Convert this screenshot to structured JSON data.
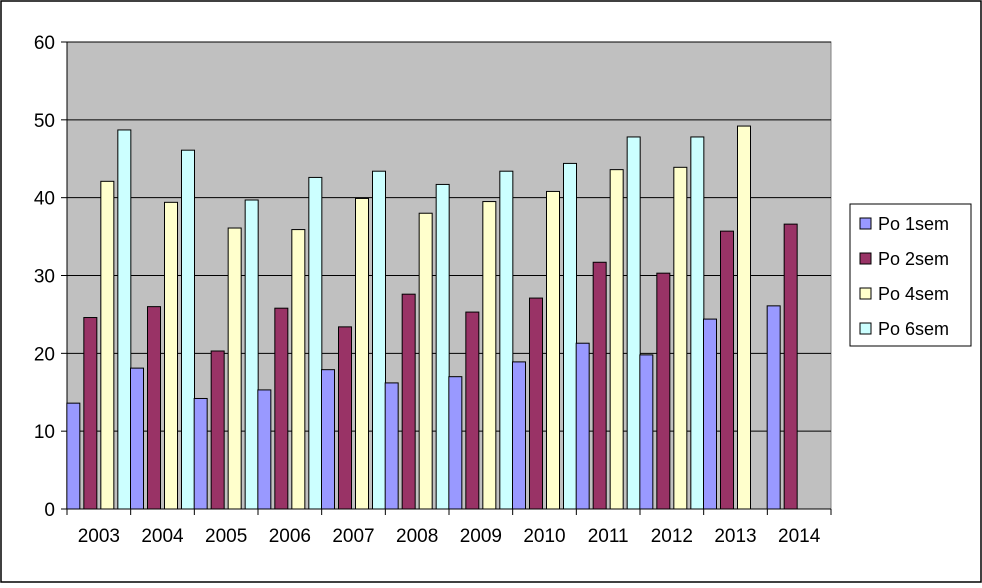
{
  "chart_data": {
    "type": "bar",
    "title": "",
    "xlabel": "",
    "ylabel": "",
    "ylim": [
      0,
      60
    ],
    "yticks": [
      0,
      10,
      20,
      30,
      40,
      50,
      60
    ],
    "grid": true,
    "legend_position": "right",
    "plot_background": "#c0c0c0",
    "categories": [
      "2003",
      "2004",
      "2005",
      "2006",
      "2007",
      "2008",
      "2009",
      "2010",
      "2011",
      "2012",
      "2013",
      "2014"
    ],
    "series": [
      {
        "name": "Po 1sem",
        "color": "#9999ff",
        "values": [
          13.6,
          18.1,
          14.2,
          15.3,
          17.9,
          16.2,
          17.0,
          18.9,
          21.3,
          19.8,
          24.4,
          26.1
        ]
      },
      {
        "name": "Po 2sem",
        "color": "#993366",
        "values": [
          24.6,
          26.0,
          20.3,
          25.8,
          23.4,
          27.6,
          25.3,
          27.1,
          31.7,
          30.3,
          35.7,
          36.6
        ]
      },
      {
        "name": "Po 4sem",
        "color": "#ffffcc",
        "values": [
          42.1,
          39.4,
          36.1,
          35.9,
          39.9,
          38.0,
          39.5,
          40.8,
          43.6,
          43.9,
          49.2,
          null
        ]
      },
      {
        "name": "Po 6sem",
        "color": "#ccffff",
        "values": [
          48.7,
          46.1,
          39.7,
          42.6,
          43.4,
          41.7,
          43.4,
          44.4,
          47.8,
          47.8,
          null,
          null
        ]
      }
    ]
  }
}
